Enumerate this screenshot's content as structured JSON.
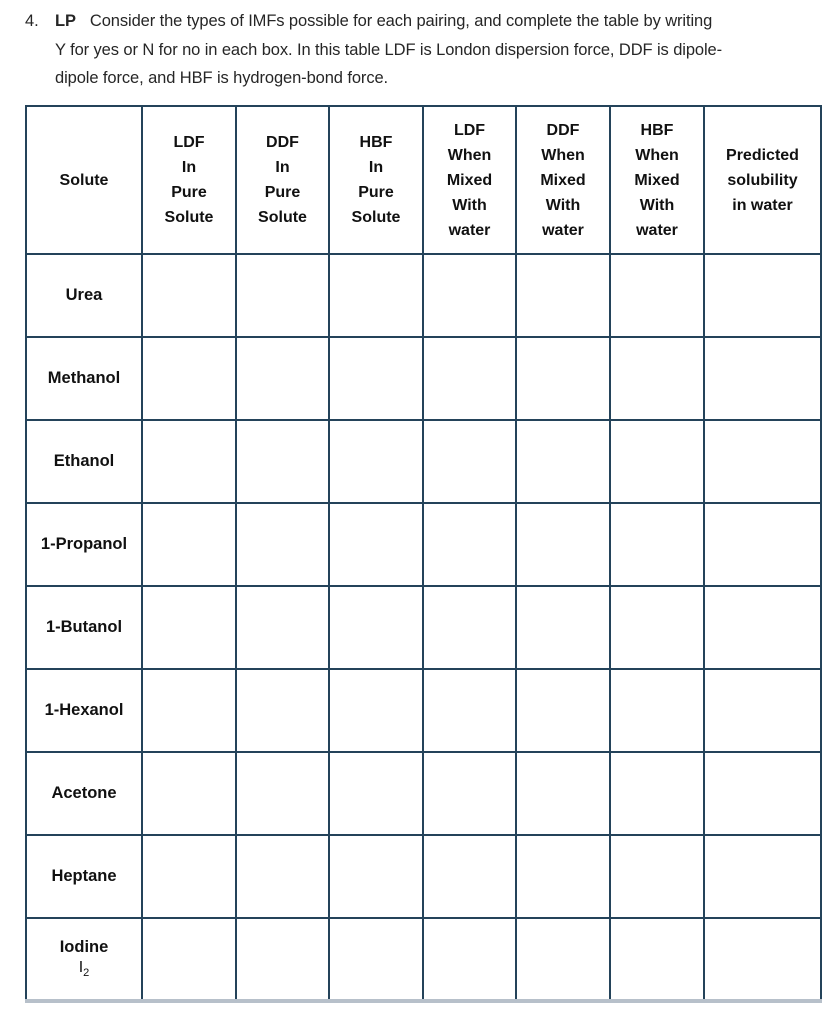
{
  "question": {
    "number": "4.",
    "tag": "LP",
    "text": "Consider the types of IMFs possible for each pairing, and complete the table by writing\nY for yes or N for no in each box.  In this table LDF is London dispersion force, DDF is dipole-\ndipole force, and HBF is hydrogen-bond force."
  },
  "table": {
    "columns": [
      "Solute",
      "LDF\nIn\nPure\nSolute",
      "DDF\nIn\nPure\nSolute",
      "HBF\nIn\nPure\nSolute",
      "LDF\nWhen\nMixed\nWith\nwater",
      "DDF\nWhen\nMixed\nWith\nwater",
      "HBF\nWhen\nMixed\nWith\nwater",
      "Predicted\nsolubility\nin water"
    ],
    "rows": [
      {
        "solute": "Urea",
        "cells": [
          "",
          "",
          "",
          "",
          "",
          "",
          ""
        ]
      },
      {
        "solute": "Methanol",
        "cells": [
          "",
          "",
          "",
          "",
          "",
          "",
          ""
        ]
      },
      {
        "solute": "Ethanol",
        "cells": [
          "",
          "",
          "",
          "",
          "",
          "",
          ""
        ]
      },
      {
        "solute": "1-Propanol",
        "cells": [
          "",
          "",
          "",
          "",
          "",
          "",
          ""
        ]
      },
      {
        "solute": "1-Butanol",
        "cells": [
          "",
          "",
          "",
          "",
          "",
          "",
          ""
        ]
      },
      {
        "solute": "1-Hexanol",
        "cells": [
          "",
          "",
          "",
          "",
          "",
          "",
          ""
        ]
      },
      {
        "solute": "Acetone",
        "cells": [
          "",
          "",
          "",
          "",
          "",
          "",
          ""
        ]
      },
      {
        "solute": "Heptane",
        "cells": [
          "",
          "",
          "",
          "",
          "",
          "",
          ""
        ]
      },
      {
        "solute": "Iodine",
        "formula_base": "I",
        "formula_subscript": "2",
        "cells": [
          "",
          "",
          "",
          "",
          "",
          "",
          ""
        ]
      }
    ]
  },
  "colors": {
    "table_border": "#24435a",
    "table_bottom_edge": "#b7c0ca",
    "text": "#262626"
  }
}
